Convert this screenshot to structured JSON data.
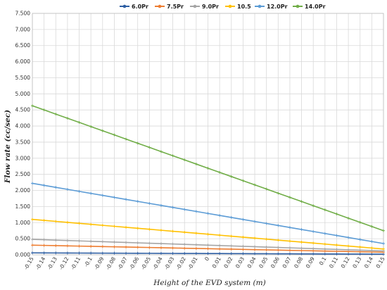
{
  "chart_data": {
    "type": "line",
    "xlabel": "Height of the EVD system (m)",
    "ylabel": "Flow rate (cc/sec)",
    "x": [
      -0.15,
      -0.14,
      -0.13,
      -0.12,
      -0.11,
      -0.1,
      -0.09,
      -0.08,
      -0.07,
      -0.06,
      -0.05,
      -0.04,
      -0.03,
      -0.02,
      -0.01,
      0,
      0.01,
      0.02,
      0.03,
      0.04,
      0.05,
      0.06,
      0.07,
      0.08,
      0.09,
      0.1,
      0.11,
      0.12,
      0.13,
      0.14,
      0.15
    ],
    "x_tick_labels": [
      "-0.15",
      "-0.14",
      "-0.13",
      "-0.12",
      "-0.11",
      "-0.1",
      "-0.09",
      "-0.08",
      "-0.07",
      "-0.06",
      "-0.05",
      "-0.04",
      "-0.03",
      "-0.02",
      "-0.01",
      "0",
      "0.01",
      "0.02",
      "0.03",
      "0.04",
      "0.05",
      "0.06",
      "0.07",
      "0.08",
      "0.09",
      "0.1",
      "0.11",
      "0.12",
      "0.13",
      "0.14",
      "0.15"
    ],
    "ylim": [
      0,
      7.5
    ],
    "y_tick_labels": [
      "0.000",
      "0.500",
      "1.000",
      "1.500",
      "2.000",
      "2.500",
      "3.000",
      "3.500",
      "4.000",
      "4.500",
      "5.000",
      "5.500",
      "6.000",
      "6.500",
      "7.000",
      "7.500"
    ],
    "grid": true,
    "legend": "top",
    "series": [
      {
        "name": "6.0Pr",
        "color": "#2e5fa3",
        "start": 0.06,
        "end": 0.02
      },
      {
        "name": "7.5Pr",
        "color": "#ed7d31",
        "start": 0.3,
        "end": 0.08
      },
      {
        "name": "9.0Pr",
        "color": "#a5a5a5",
        "start": 0.48,
        "end": 0.12
      },
      {
        "name": "10.5",
        "color": "#ffc000",
        "start": 1.1,
        "end": 0.18
      },
      {
        "name": "12.0Pr",
        "color": "#5b9bd5",
        "start": 2.22,
        "end": 0.35
      },
      {
        "name": "14.0Pr",
        "color": "#70ad47",
        "start": 4.63,
        "end": 0.75
      }
    ]
  }
}
